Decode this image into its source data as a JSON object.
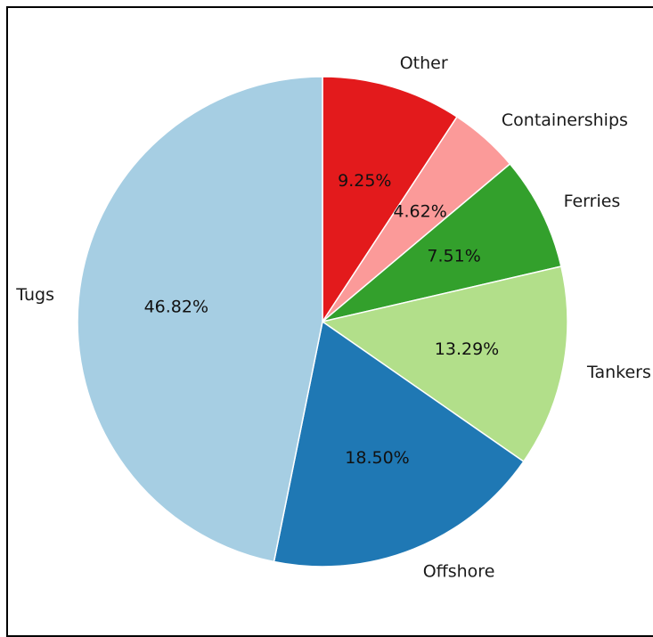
{
  "chart_data": {
    "type": "pie",
    "title": "",
    "start_angle_deg": 90,
    "direction": "clockwise",
    "edge_color": "#ffffff",
    "slices": [
      {
        "label": "Other",
        "value": 9.25,
        "pct_text": "9.25%",
        "color": "#e31a1c"
      },
      {
        "label": "Containerships",
        "value": 4.62,
        "pct_text": "4.62%",
        "color": "#fb9a99"
      },
      {
        "label": "Ferries",
        "value": 7.51,
        "pct_text": "7.51%",
        "color": "#33a02c"
      },
      {
        "label": "Tankers",
        "value": 13.29,
        "pct_text": "13.29%",
        "color": "#b2df8a"
      },
      {
        "label": "Offshore",
        "value": 18.5,
        "pct_text": "18.50%",
        "color": "#1f78b4"
      },
      {
        "label": "Tugs",
        "value": 46.82,
        "pct_text": "46.82%",
        "color": "#a6cee3"
      }
    ]
  }
}
